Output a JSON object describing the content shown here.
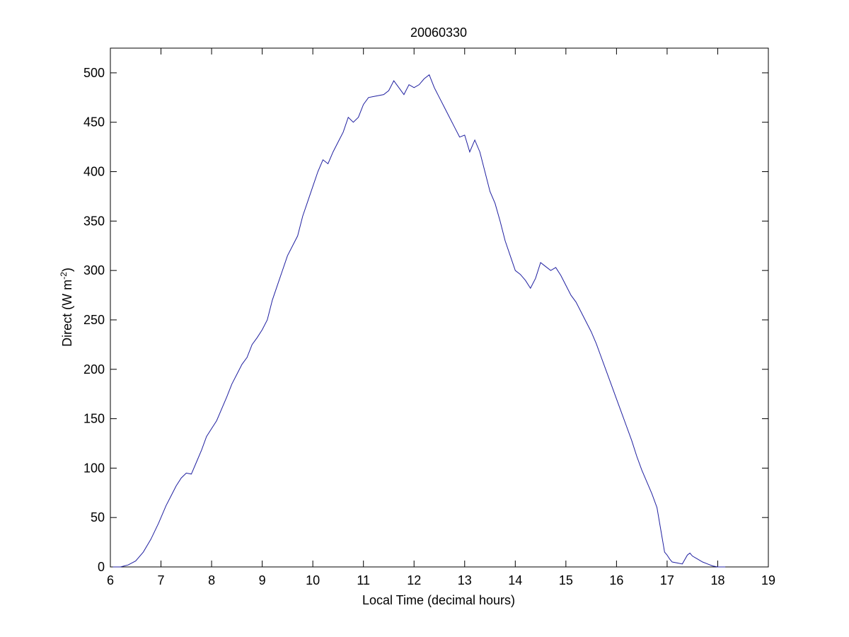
{
  "chart_data": {
    "type": "line",
    "title": "20060330",
    "xlabel": "Local Time (decimal hours)",
    "ylabel": {
      "main": "Direct (W m",
      "superscript": "-2",
      "close": ")"
    },
    "xlim": [
      6,
      19
    ],
    "ylim": [
      0,
      525
    ],
    "xticks": [
      6,
      7,
      8,
      9,
      10,
      11,
      12,
      13,
      14,
      15,
      16,
      17,
      18,
      19
    ],
    "yticks": [
      0,
      50,
      100,
      150,
      200,
      250,
      300,
      350,
      400,
      450,
      500
    ],
    "grid": false,
    "legend": "none",
    "series": [
      {
        "color": "#1f1fa0",
        "x": [
          6.05,
          6.2,
          6.35,
          6.5,
          6.65,
          6.8,
          6.95,
          7.1,
          7.2,
          7.3,
          7.4,
          7.5,
          7.6,
          7.7,
          7.8,
          7.9,
          8.0,
          8.1,
          8.2,
          8.3,
          8.4,
          8.5,
          8.6,
          8.7,
          8.8,
          8.9,
          9.0,
          9.1,
          9.2,
          9.3,
          9.4,
          9.5,
          9.6,
          9.7,
          9.8,
          9.9,
          10.0,
          10.1,
          10.2,
          10.3,
          10.4,
          10.5,
          10.6,
          10.7,
          10.8,
          10.9,
          11.0,
          11.1,
          11.2,
          11.3,
          11.4,
          11.5,
          11.6,
          11.7,
          11.8,
          11.9,
          12.0,
          12.1,
          12.2,
          12.3,
          12.4,
          12.5,
          12.6,
          12.7,
          12.8,
          12.9,
          13.0,
          13.1,
          13.2,
          13.3,
          13.4,
          13.5,
          13.6,
          13.7,
          13.8,
          13.9,
          14.0,
          14.1,
          14.2,
          14.3,
          14.4,
          14.5,
          14.6,
          14.7,
          14.8,
          14.9,
          15.0,
          15.1,
          15.2,
          15.3,
          15.4,
          15.5,
          15.6,
          15.7,
          15.8,
          15.9,
          16.0,
          16.1,
          16.2,
          16.3,
          16.4,
          16.5,
          16.6,
          16.7,
          16.8,
          16.9,
          16.95,
          17.0,
          17.05,
          17.1,
          17.2,
          17.3,
          17.4,
          17.45,
          17.5,
          17.6,
          17.7,
          17.8,
          17.9,
          18.0,
          18.1,
          18.15
        ],
        "y": [
          0,
          0,
          2,
          6,
          15,
          28,
          44,
          62,
          72,
          82,
          90,
          95,
          94,
          106,
          118,
          132,
          140,
          148,
          160,
          172,
          185,
          195,
          205,
          212,
          225,
          232,
          240,
          250,
          270,
          285,
          300,
          315,
          325,
          335,
          355,
          370,
          385,
          400,
          412,
          408,
          420,
          430,
          440,
          455,
          450,
          455,
          468,
          475,
          476,
          477,
          478,
          482,
          492,
          485,
          478,
          488,
          485,
          488,
          494,
          498,
          485,
          475,
          465,
          455,
          445,
          435,
          437,
          420,
          432,
          420,
          400,
          380,
          368,
          350,
          330,
          315,
          300,
          296,
          290,
          282,
          292,
          308,
          304,
          300,
          303,
          295,
          285,
          275,
          268,
          258,
          248,
          238,
          226,
          212,
          198,
          184,
          170,
          156,
          142,
          128,
          112,
          98,
          86,
          74,
          60,
          30,
          15,
          12,
          8,
          5,
          4,
          3,
          12,
          14,
          11,
          8,
          5,
          3,
          1,
          0,
          0,
          0
        ]
      }
    ]
  }
}
